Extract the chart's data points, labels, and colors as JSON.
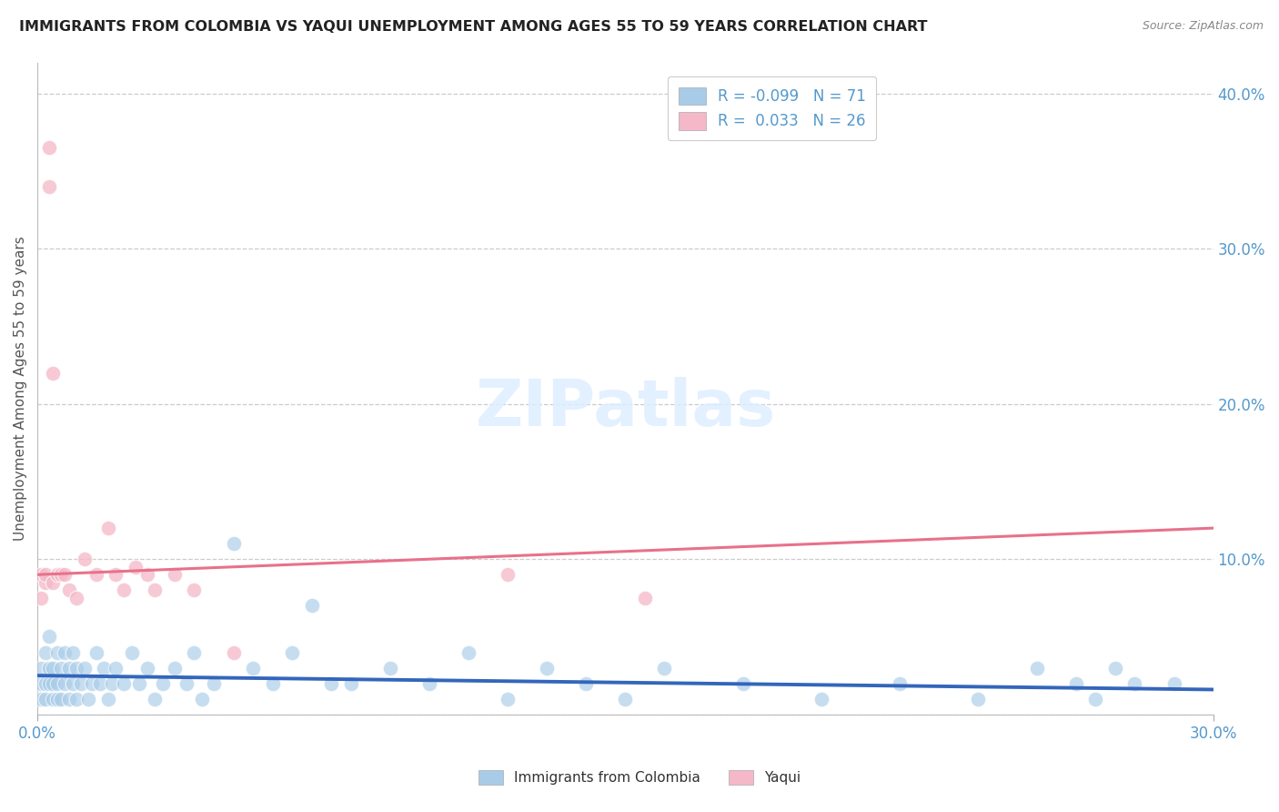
{
  "title": "IMMIGRANTS FROM COLOMBIA VS YAQUI UNEMPLOYMENT AMONG AGES 55 TO 59 YEARS CORRELATION CHART",
  "source_text": "Source: ZipAtlas.com",
  "ylabel": "Unemployment Among Ages 55 to 59 years",
  "xlim": [
    0.0,
    0.3
  ],
  "ylim": [
    0.0,
    0.42
  ],
  "yticks_right": [
    0.0,
    0.1,
    0.2,
    0.3,
    0.4
  ],
  "ytick_labels_right": [
    "",
    "10.0%",
    "20.0%",
    "30.0%",
    "40.0%"
  ],
  "legend_colombia": "Immigrants from Colombia",
  "legend_yaqui": "Yaqui",
  "r_colombia": -0.099,
  "n_colombia": 71,
  "r_yaqui": 0.033,
  "n_yaqui": 26,
  "colombia_color": "#a8cce8",
  "colombia_line_color": "#3366bb",
  "yaqui_color": "#f4b8c8",
  "yaqui_line_color": "#e8718a",
  "title_color": "#222222",
  "axis_label_color": "#555555",
  "tick_label_color": "#5599cc",
  "grid_color": "#cccccc",
  "watermark_color": "#ddeeff",
  "colombia_scatter_x": [
    0.001,
    0.001,
    0.001,
    0.002,
    0.002,
    0.002,
    0.003,
    0.003,
    0.003,
    0.004,
    0.004,
    0.004,
    0.005,
    0.005,
    0.005,
    0.006,
    0.006,
    0.007,
    0.007,
    0.008,
    0.008,
    0.009,
    0.009,
    0.01,
    0.01,
    0.011,
    0.012,
    0.013,
    0.014,
    0.015,
    0.016,
    0.017,
    0.018,
    0.019,
    0.02,
    0.022,
    0.024,
    0.026,
    0.028,
    0.03,
    0.032,
    0.035,
    0.038,
    0.04,
    0.042,
    0.045,
    0.05,
    0.055,
    0.06,
    0.065,
    0.07,
    0.075,
    0.08,
    0.09,
    0.1,
    0.11,
    0.12,
    0.13,
    0.14,
    0.15,
    0.16,
    0.18,
    0.2,
    0.22,
    0.24,
    0.255,
    0.265,
    0.27,
    0.275,
    0.28,
    0.29
  ],
  "colombia_scatter_y": [
    0.02,
    0.01,
    0.03,
    0.02,
    0.04,
    0.01,
    0.03,
    0.02,
    0.05,
    0.01,
    0.03,
    0.02,
    0.04,
    0.01,
    0.02,
    0.03,
    0.01,
    0.04,
    0.02,
    0.03,
    0.01,
    0.02,
    0.04,
    0.03,
    0.01,
    0.02,
    0.03,
    0.01,
    0.02,
    0.04,
    0.02,
    0.03,
    0.01,
    0.02,
    0.03,
    0.02,
    0.04,
    0.02,
    0.03,
    0.01,
    0.02,
    0.03,
    0.02,
    0.04,
    0.01,
    0.02,
    0.11,
    0.03,
    0.02,
    0.04,
    0.07,
    0.02,
    0.02,
    0.03,
    0.02,
    0.04,
    0.01,
    0.03,
    0.02,
    0.01,
    0.03,
    0.02,
    0.01,
    0.02,
    0.01,
    0.03,
    0.02,
    0.01,
    0.03,
    0.02,
    0.02
  ],
  "yaqui_scatter_x": [
    0.001,
    0.001,
    0.002,
    0.002,
    0.003,
    0.003,
    0.004,
    0.004,
    0.005,
    0.006,
    0.007,
    0.008,
    0.01,
    0.012,
    0.015,
    0.018,
    0.02,
    0.022,
    0.025,
    0.028,
    0.03,
    0.035,
    0.04,
    0.05,
    0.12,
    0.155
  ],
  "yaqui_scatter_y": [
    0.09,
    0.075,
    0.085,
    0.09,
    0.365,
    0.34,
    0.22,
    0.085,
    0.09,
    0.09,
    0.09,
    0.08,
    0.075,
    0.1,
    0.09,
    0.12,
    0.09,
    0.08,
    0.095,
    0.09,
    0.08,
    0.09,
    0.08,
    0.04,
    0.09,
    0.075
  ],
  "colombia_line_x": [
    0.0,
    0.3
  ],
  "colombia_line_y": [
    0.025,
    0.016
  ],
  "yaqui_line_x": [
    0.0,
    0.3
  ],
  "yaqui_line_y": [
    0.09,
    0.12
  ],
  "figsize": [
    14.06,
    8.92
  ],
  "dpi": 100
}
